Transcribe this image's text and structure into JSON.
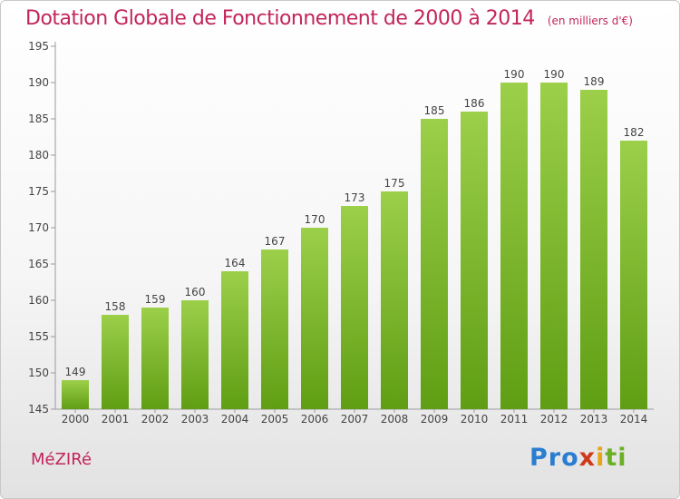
{
  "title": "Dotation Globale de Fonctionnement de 2000 à 2014",
  "unit": "(en milliers d'€)",
  "commune": "MéZIRé",
  "logo": {
    "p1": "Pro",
    "p2": "x",
    "p3": "i",
    "p4": "ti"
  },
  "colors": {
    "bar_top": "#9ccf4a",
    "bar_bottom": "#5f9e14",
    "title": "#c2255c"
  },
  "chart_data": {
    "type": "bar",
    "categories": [
      "2000",
      "2001",
      "2002",
      "2003",
      "2004",
      "2005",
      "2006",
      "2007",
      "2008",
      "2009",
      "2010",
      "2011",
      "2012",
      "2013",
      "2014"
    ],
    "values": [
      149,
      158,
      159,
      160,
      164,
      167,
      170,
      173,
      175,
      185,
      186,
      190,
      190,
      189,
      182
    ],
    "ylim": [
      145,
      195
    ],
    "yticks": [
      145,
      150,
      155,
      160,
      165,
      170,
      175,
      180,
      185,
      190,
      195
    ],
    "grid": false
  }
}
